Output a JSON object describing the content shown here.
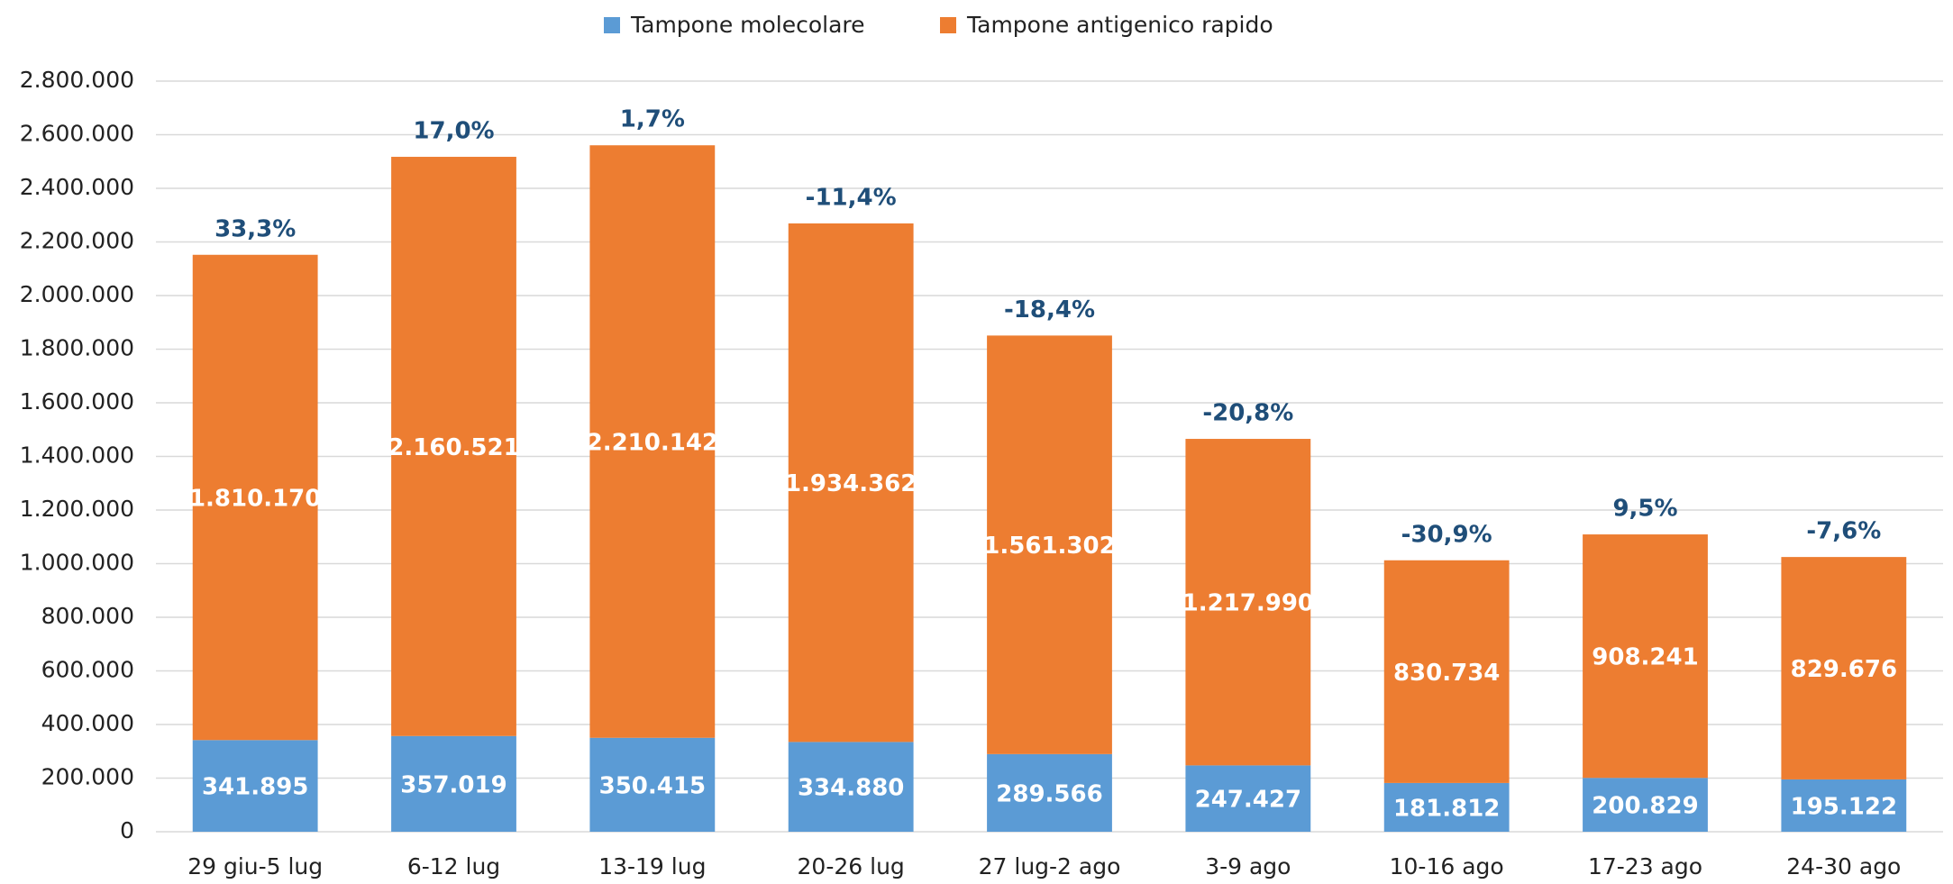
{
  "chart_data": {
    "type": "stacked_bar",
    "categories": [
      "29 giu-5 lug",
      "6-12 lug",
      "13-19 lug",
      "20-26 lug",
      "27 lug-2 ago",
      "3-9 ago",
      "10-16 ago",
      "17-23 ago",
      "24-30 ago"
    ],
    "series": [
      {
        "name": "Tampone molecolare",
        "color": "#5b9bd5",
        "values": [
          341895,
          357019,
          350415,
          334880,
          289566,
          247427,
          181812,
          200829,
          195122
        ],
        "value_labels": [
          "341.895",
          "357.019",
          "350.415",
          "334.880",
          "289.566",
          "247.427",
          "181.812",
          "200.829",
          "195.122"
        ]
      },
      {
        "name": "Tampone antigenico rapido",
        "color": "#ed7d31",
        "values": [
          1810170,
          2160521,
          2210142,
          1934362,
          1561302,
          1217990,
          830734,
          908241,
          829676
        ],
        "value_labels": [
          "1.810.170",
          "2.160.521",
          "2.210.142",
          "1.934.362",
          "1.561.302",
          "1.217.990",
          "830.734",
          "908.241",
          "829.676"
        ]
      }
    ],
    "annotations": [
      "33,3%",
      "17,0%",
      "1,7%",
      "-11,4%",
      "-18,4%",
      "-20,8%",
      "-30,9%",
      "9,5%",
      "-7,6%"
    ],
    "annotation_color": "#1f4e79",
    "ylim": [
      0,
      2800000
    ],
    "yticks": [
      0,
      {
        "value": 200000,
        "label": "200.000"
      },
      {
        "value": 400000,
        "label": "400.000"
      },
      {
        "value": 600000,
        "label": "600.000"
      },
      {
        "value": 800000,
        "label": "800.000"
      },
      {
        "value": 1000000,
        "label": "1.000.000"
      },
      {
        "value": 1200000,
        "label": "1.200.000"
      },
      {
        "value": 1400000,
        "label": "1.400.000"
      },
      {
        "value": 1600000,
        "label": "1.600.000"
      },
      {
        "value": 1800000,
        "label": "1.800.000"
      },
      {
        "value": 2000000,
        "label": "2.000.000"
      },
      {
        "value": 2200000,
        "label": "2.200.000"
      },
      {
        "value": 2400000,
        "label": "2.400.000"
      },
      {
        "value": 2600000,
        "label": "2.600.000"
      },
      {
        "value": 2800000,
        "label": "2.800.000"
      }
    ],
    "grid": true,
    "legend": "top"
  }
}
